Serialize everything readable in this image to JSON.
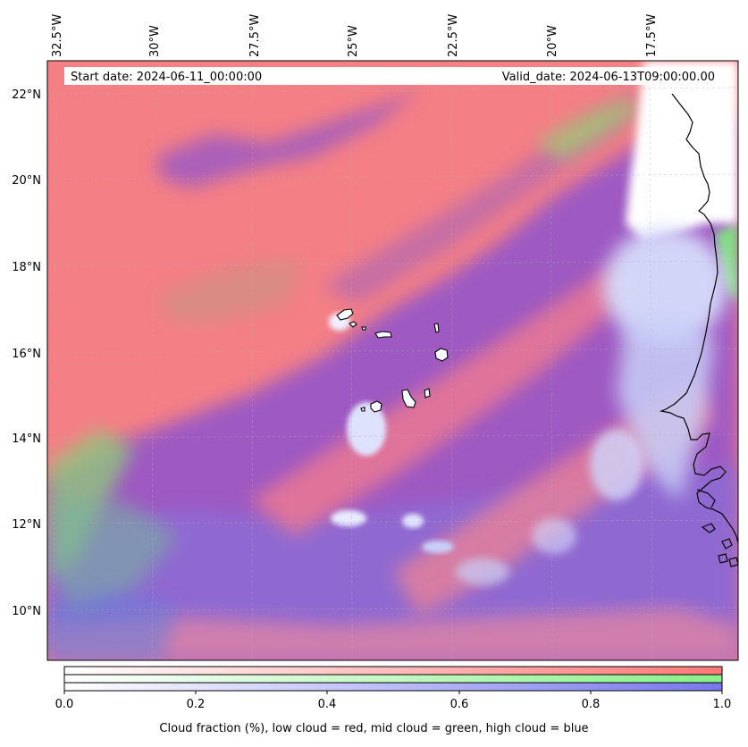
{
  "header": {
    "start_date": "Start date: 2024-06-11_00:00:00",
    "valid_date": "Valid_date: 2024-06-13T09:00:00.00"
  },
  "map": {
    "lon_labels": [
      "32.5°W",
      "30°W",
      "27.5°W",
      "25°W",
      "22.5°W",
      "20°W",
      "17.5°W"
    ],
    "lat_labels": [
      "22°N",
      "20°N",
      "18°N",
      "16°N",
      "14°N",
      "12°N",
      "10°N"
    ],
    "colors": {
      "low_cloud": "#ff7f7f",
      "mid_cloud": "#8cf08c",
      "high_cloud": "#8080ee",
      "overlap_low_high": "#9a55c8",
      "clear": "#ffffff"
    }
  },
  "colorbar": {
    "ticks": [
      "0.0",
      "0.2",
      "0.4",
      "0.6",
      "0.8",
      "1.0"
    ],
    "bands": [
      {
        "name": "low cloud",
        "color": "#ff7777"
      },
      {
        "name": "mid cloud",
        "color": "#88f088"
      },
      {
        "name": "high cloud",
        "color": "#7777ee"
      }
    ],
    "label": "Cloud fraction (%), low cloud = red, mid cloud = green, high cloud = blue"
  }
}
